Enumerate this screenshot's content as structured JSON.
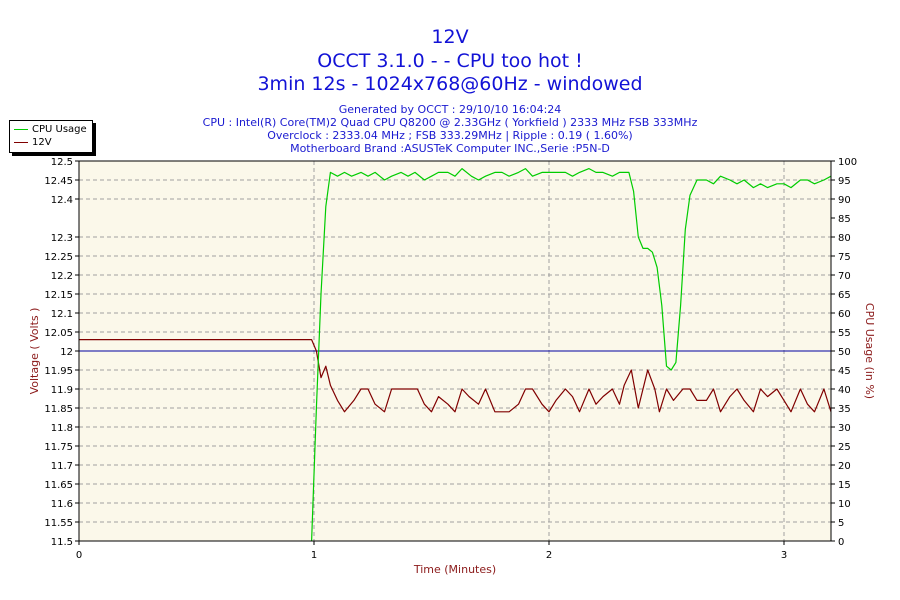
{
  "header": {
    "title": "12V",
    "subtitle": "OCCT 3.1.0 -  - CPU too hot !",
    "run_info": "3min 12s - 1024x768@60Hz - windowed",
    "generated": "Generated by OCCT : 29/10/10 16:04:24",
    "cpu": "CPU : Intel(R) Core(TM)2 Quad CPU Q8200 @ 2.33GHz ( Yorkfield ) 2333 MHz FSB 333MHz",
    "overclock": "Overclock : 2333.04 MHz ; FSB 333.29MHz | Ripple : 0.19 ( 1.60%)",
    "motherboard": "Motherboard Brand :ASUSTeK Computer INC.,Serie :P5N-D"
  },
  "legend": {
    "items": [
      {
        "label": "CPU Usage",
        "color": "#00cc00"
      },
      {
        "label": "12V",
        "color": "#800000"
      }
    ]
  },
  "chart_data": {
    "type": "line",
    "xlabel": "Time (Minutes)",
    "ylabel": "Voltage ( Volts )",
    "y2label": "CPU Usage (in %)",
    "xlim": [
      0,
      3.2
    ],
    "ylim": [
      11.5,
      12.5
    ],
    "y2lim": [
      0,
      100
    ],
    "x_ticks": [
      "0",
      "1",
      "2",
      "3"
    ],
    "y_ticks": [
      "12.5",
      "12.45",
      "12.4",
      "12.3",
      "12.25",
      "12.2",
      "12.15",
      "12.1",
      "12.05",
      "12",
      "11.95",
      "11.9",
      "11.85",
      "11.8",
      "11.75",
      "11.7",
      "11.65",
      "11.6",
      "11.55",
      "11.5"
    ],
    "y2_ticks": [
      "100",
      "95",
      "90",
      "85",
      "80",
      "75",
      "70",
      "65",
      "60",
      "55",
      "50",
      "45",
      "40",
      "35",
      "30",
      "25",
      "20",
      "15",
      "10",
      "5",
      "0"
    ],
    "grid": true,
    "reference_line": {
      "value": 12.0,
      "color": "#0000a0"
    },
    "series": [
      {
        "name": "12V",
        "axis": "left",
        "color": "#800000",
        "x": [
          0,
          0.99,
          1.01,
          1.03,
          1.05,
          1.07,
          1.1,
          1.13,
          1.17,
          1.2,
          1.23,
          1.26,
          1.3,
          1.33,
          1.37,
          1.4,
          1.44,
          1.47,
          1.5,
          1.53,
          1.57,
          1.6,
          1.63,
          1.66,
          1.7,
          1.73,
          1.77,
          1.8,
          1.83,
          1.87,
          1.9,
          1.93,
          1.97,
          2.0,
          2.03,
          2.07,
          2.1,
          2.13,
          2.17,
          2.2,
          2.23,
          2.27,
          2.3,
          2.32,
          2.35,
          2.38,
          2.4,
          2.42,
          2.45,
          2.47,
          2.5,
          2.53,
          2.57,
          2.6,
          2.63,
          2.67,
          2.7,
          2.73,
          2.77,
          2.8,
          2.83,
          2.87,
          2.9,
          2.93,
          2.97,
          3.0,
          3.03,
          3.07,
          3.1,
          3.13,
          3.17,
          3.2
        ],
        "values": [
          12.03,
          12.03,
          12.0,
          11.93,
          11.96,
          11.91,
          11.87,
          11.84,
          11.87,
          11.9,
          11.9,
          11.86,
          11.84,
          11.9,
          11.9,
          11.9,
          11.9,
          11.86,
          11.84,
          11.88,
          11.86,
          11.84,
          11.9,
          11.88,
          11.86,
          11.9,
          11.84,
          11.84,
          11.84,
          11.86,
          11.9,
          11.9,
          11.86,
          11.84,
          11.87,
          11.9,
          11.88,
          11.84,
          11.9,
          11.86,
          11.88,
          11.9,
          11.86,
          11.91,
          11.95,
          11.85,
          11.9,
          11.95,
          11.9,
          11.84,
          11.9,
          11.87,
          11.9,
          11.9,
          11.87,
          11.87,
          11.9,
          11.84,
          11.88,
          11.9,
          11.87,
          11.84,
          11.9,
          11.88,
          11.9,
          11.87,
          11.84,
          11.9,
          11.86,
          11.84,
          11.9,
          11.84
        ]
      },
      {
        "name": "CPU Usage",
        "axis": "right",
        "color": "#00cc00",
        "x": [
          0.99,
          1.01,
          1.03,
          1.05,
          1.07,
          1.1,
          1.13,
          1.16,
          1.2,
          1.23,
          1.26,
          1.3,
          1.33,
          1.37,
          1.4,
          1.43,
          1.47,
          1.5,
          1.53,
          1.57,
          1.6,
          1.63,
          1.67,
          1.7,
          1.73,
          1.77,
          1.8,
          1.83,
          1.87,
          1.9,
          1.93,
          1.97,
          2.0,
          2.03,
          2.07,
          2.1,
          2.13,
          2.17,
          2.2,
          2.23,
          2.27,
          2.3,
          2.32,
          2.34,
          2.36,
          2.38,
          2.4,
          2.42,
          2.44,
          2.46,
          2.48,
          2.5,
          2.52,
          2.54,
          2.56,
          2.58,
          2.6,
          2.63,
          2.67,
          2.7,
          2.73,
          2.77,
          2.8,
          2.83,
          2.87,
          2.9,
          2.93,
          2.97,
          3.0,
          3.03,
          3.07,
          3.1,
          3.13,
          3.17,
          3.2
        ],
        "values": [
          0,
          35,
          65,
          88,
          97,
          96,
          97,
          96,
          97,
          96,
          97,
          95,
          96,
          97,
          96,
          97,
          95,
          96,
          97,
          97,
          96,
          98,
          96,
          95,
          96,
          97,
          97,
          96,
          97,
          98,
          96,
          97,
          97,
          97,
          97,
          96,
          97,
          98,
          97,
          97,
          96,
          97,
          97,
          97,
          92,
          80,
          77,
          77,
          76,
          72,
          62,
          46,
          45,
          47,
          62,
          82,
          91,
          95,
          95,
          94,
          96,
          95,
          94,
          95,
          93,
          94,
          93,
          94,
          94,
          93,
          95,
          95,
          94,
          95,
          96
        ]
      }
    ]
  }
}
